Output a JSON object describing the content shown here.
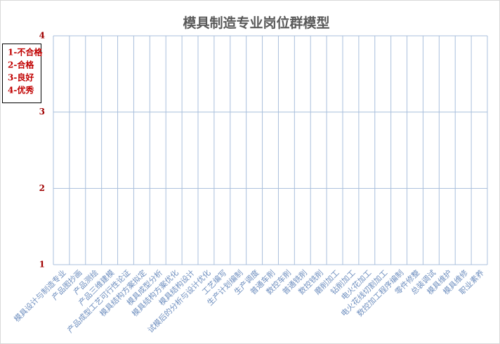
{
  "chart_data": {
    "type": "line",
    "title": "模具制造专业岗位群模型",
    "categories": [
      "模具设计与制造专业",
      "产品图抄画",
      "产品测绘",
      "产品三维建模",
      "产品成型工艺可行性论证",
      "模具结构方案拟定",
      "模具成型分析",
      "模具结构方案优化",
      "模具结构设计",
      "试模后的分析与设计优化",
      "工艺编写",
      "生产计划编制",
      "生产调度",
      "普通车削",
      "数控车削",
      "普通铣削",
      "数控铣削",
      "磨削加工",
      "钻削加工",
      "电火花加工",
      "电火花线切割加工",
      "数控加工程序编制",
      "零件修整",
      "总装调试",
      "模具维护",
      "模具维修",
      "职业素养"
    ],
    "ylim": [
      1,
      4
    ],
    "yticks": [
      1,
      2,
      3,
      4
    ],
    "grid": true,
    "annotations": [
      "1-不合格",
      "2-合格",
      "3-良好",
      "4-优秀"
    ]
  }
}
